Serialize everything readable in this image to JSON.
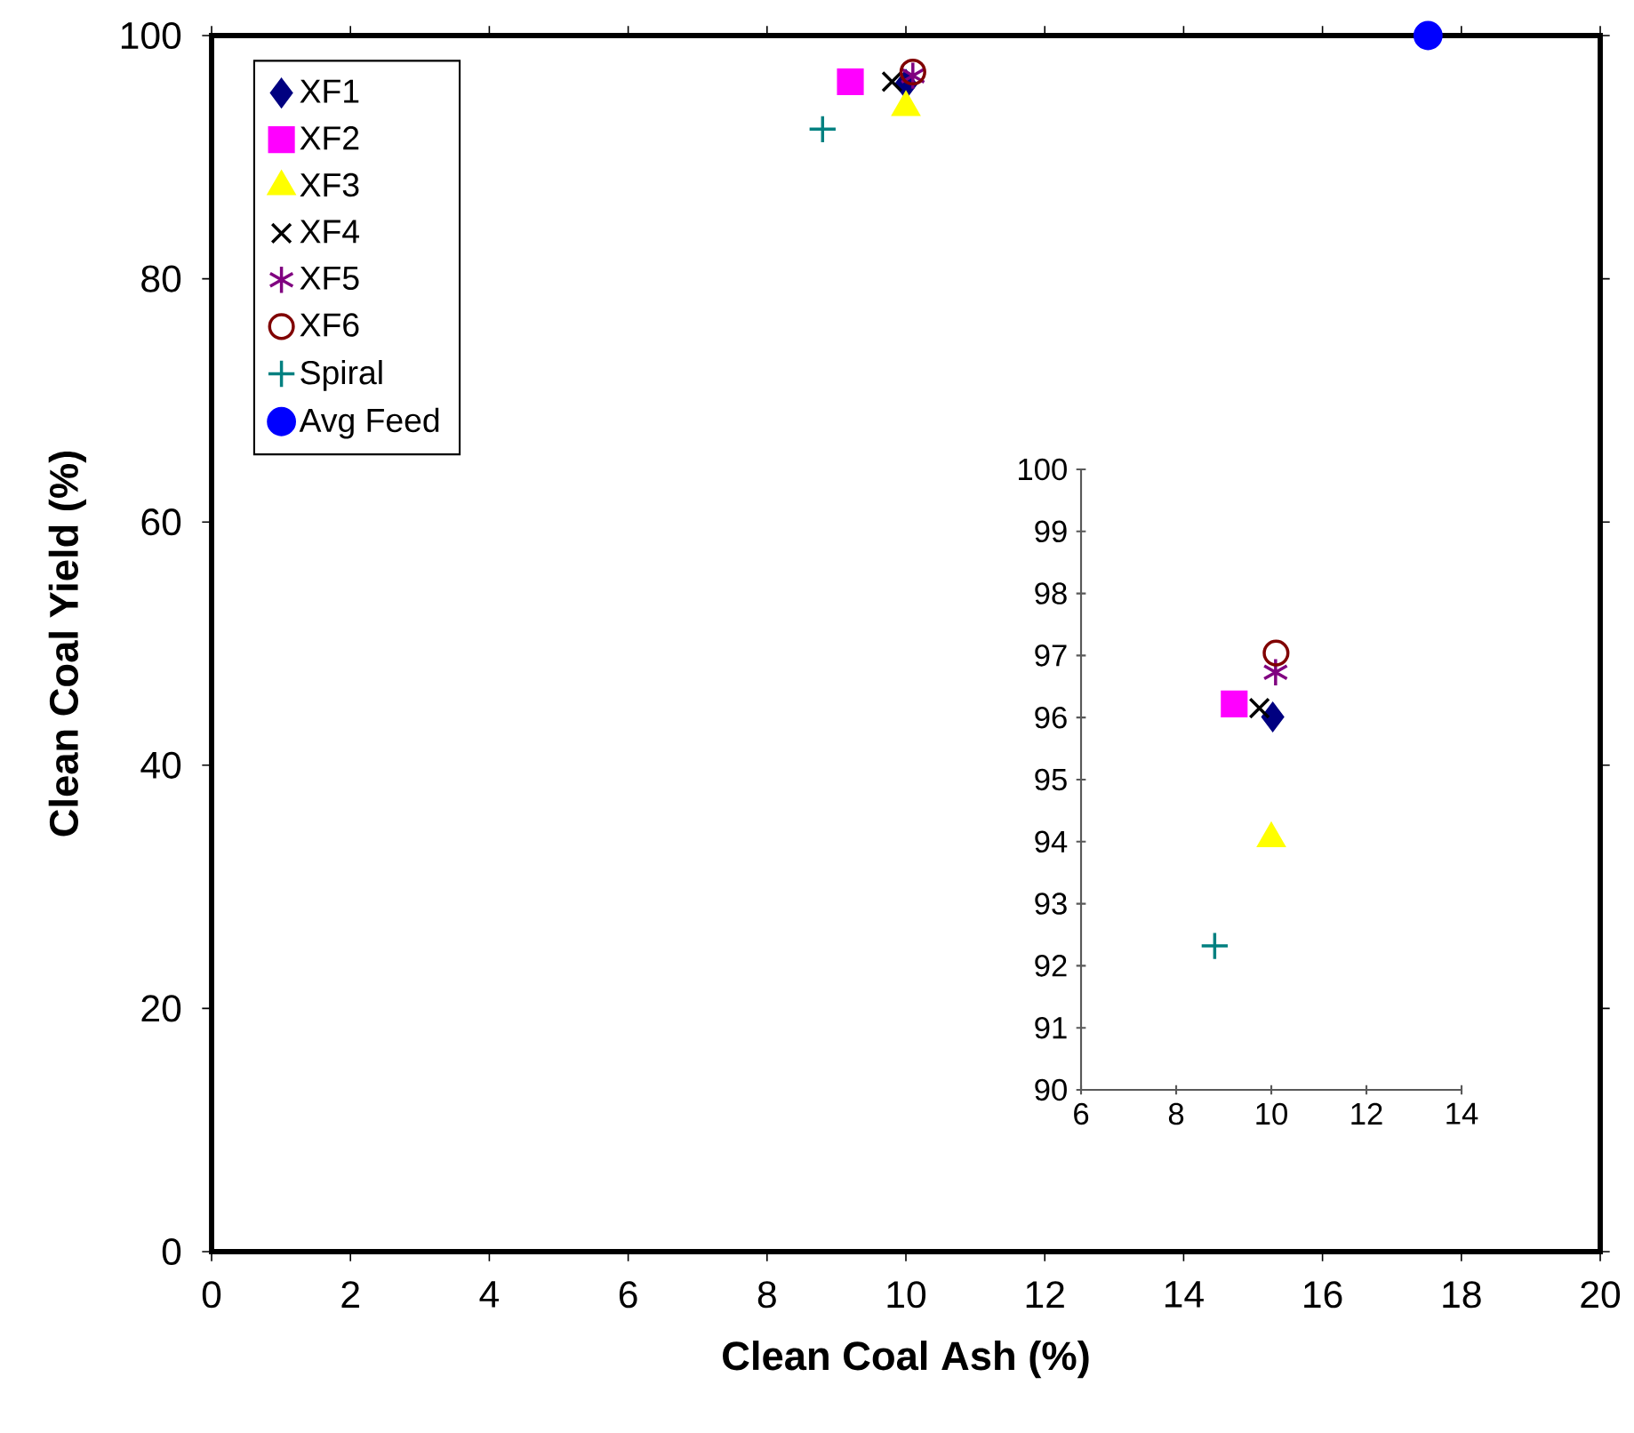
{
  "chart_data": [
    {
      "type": "scatter",
      "xlabel": "Clean Coal Ash (%)",
      "ylabel": "Clean Coal Yield (%)",
      "xlim": [
        0,
        20
      ],
      "xticks": [
        0,
        2,
        4,
        6,
        8,
        10,
        12,
        14,
        16,
        18,
        20
      ],
      "ylim": [
        0,
        100
      ],
      "yticks": [
        0,
        20,
        40,
        60,
        80,
        100
      ],
      "legend": "top left",
      "series": [
        {
          "name": "XF1",
          "color": "#000080",
          "marker": "diamond",
          "x": [
            10.0
          ],
          "values": [
            96.0
          ]
        },
        {
          "name": "XF2",
          "color": "#ff00ff",
          "marker": "square",
          "x": [
            9.2
          ],
          "values": [
            96.2
          ]
        },
        {
          "name": "XF3",
          "color": "#ffff00",
          "marker": "triangle",
          "x": [
            10.0
          ],
          "values": [
            94.1
          ]
        },
        {
          "name": "XF4",
          "color": "#000000",
          "marker": "x",
          "x": [
            9.8
          ],
          "values": [
            96.2
          ]
        },
        {
          "name": "XF5",
          "color": "#800080",
          "marker": "cross",
          "x": [
            10.1
          ],
          "values": [
            96.7
          ]
        },
        {
          "name": "XF6",
          "color": "#800000",
          "marker": "circle-open",
          "x": [
            10.1
          ],
          "values": [
            97.0
          ]
        },
        {
          "name": "Spiral",
          "color": "#008080",
          "marker": "plus",
          "x": [
            8.8
          ],
          "values": [
            92.3
          ]
        },
        {
          "name": "Avg Feed",
          "color": "#0000ff",
          "marker": "circle",
          "x": [
            17.52
          ],
          "values": [
            100
          ]
        }
      ]
    },
    {
      "type": "scatter",
      "xlim": [
        6,
        14
      ],
      "xticks": [
        6,
        8,
        10,
        12,
        14
      ],
      "ylim": [
        90,
        100
      ],
      "yticks": [
        90,
        91,
        92,
        93,
        94,
        95,
        96,
        97,
        98,
        99,
        100
      ],
      "series": [
        {
          "color": "#000080",
          "marker": "diamond",
          "x": [
            10.03
          ],
          "values": [
            96.01
          ]
        },
        {
          "color": "#ff00ff",
          "marker": "square",
          "x": [
            9.22
          ],
          "values": [
            96.22
          ]
        },
        {
          "color": "#ffff00",
          "marker": "triangle",
          "x": [
            10.0
          ],
          "values": [
            94.05
          ]
        },
        {
          "color": "#000000",
          "marker": "x",
          "x": [
            9.75
          ],
          "values": [
            96.15
          ]
        },
        {
          "color": "#800080",
          "marker": "cross",
          "x": [
            10.09
          ],
          "values": [
            96.73
          ]
        },
        {
          "color": "#800000",
          "marker": "circle-open",
          "x": [
            10.1
          ],
          "values": [
            97.04
          ]
        },
        {
          "color": "#008080",
          "marker": "plus",
          "x": [
            8.81
          ],
          "values": [
            92.32
          ]
        }
      ]
    }
  ]
}
